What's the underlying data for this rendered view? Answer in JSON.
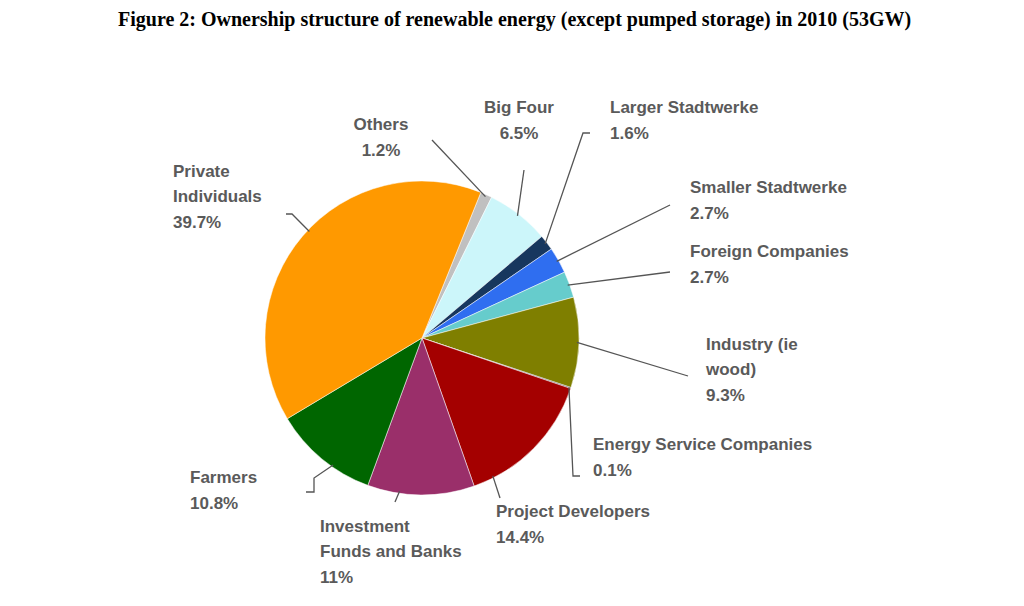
{
  "chart_data": {
    "type": "pie",
    "title": "Figure 2: Ownership structure of renewable energy (except pumped storage) in 2010 (53GW)",
    "categories": [
      "Others",
      "Big Four",
      "Larger Stadtwerke",
      "Smaller Stadtwerke",
      "Foreign Companies",
      "Industry (ie wood)",
      "Energy Service Companies",
      "Project Developers",
      "Investment Funds and Banks",
      "Farmers",
      "Private Individuals"
    ],
    "values": [
      1.2,
      6.5,
      1.6,
      2.7,
      2.7,
      9.3,
      0.1,
      14.4,
      11,
      10.8,
      39.7
    ],
    "value_labels": [
      "1.2%",
      "6.5%",
      "1.6%",
      "2.7%",
      "2.7%",
      "9.3%",
      "0.1%",
      "14.4%",
      "11%",
      "10.8%",
      "39.7%"
    ],
    "colors": [
      "#c0c0c0",
      "#ccf6fa",
      "#17375e",
      "#2f6ef0",
      "#66cccc",
      "#7f7f00",
      "#3b3b3b",
      "#a40000",
      "#9a2f6a",
      "#006600",
      "#ff9900"
    ],
    "data_labels": true
  }
}
